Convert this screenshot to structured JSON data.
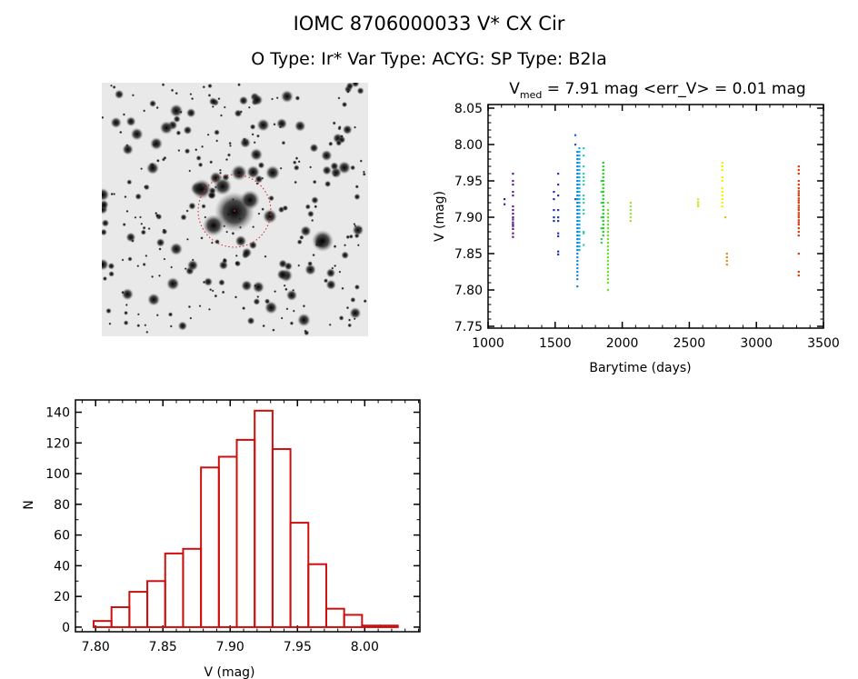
{
  "header": {
    "title": "IOMC 8706000033   V* CX Cir",
    "subtitle": "O Type: Ir*  Var Type: ACYG:  SP Type: B2Ia"
  },
  "image_panel": {
    "description_icon": "star-field-image",
    "marker_color": "#d02020"
  },
  "chart_data": [
    {
      "type": "scatter",
      "title_main": "V",
      "title_sub": "med",
      "title_rest": " = 7.91 mag <err_V> = 0.01 mag",
      "xlabel": "Barytime (days)",
      "ylabel": "V (mag)",
      "xlim": [
        1000,
        3500
      ],
      "ylim": [
        8.055,
        7.7475
      ],
      "y_reversed": true,
      "xticks": [
        1000,
        1500,
        2000,
        2500,
        3000,
        3500
      ],
      "yticks": [
        "7.75",
        "7.80",
        "7.85",
        "7.90",
        "7.95",
        "8.00",
        "8.05"
      ],
      "clusters": [
        {
          "x": 1122,
          "color": "#4b1a78",
          "y": [
            7.918,
            7.925
          ]
        },
        {
          "x": 1185,
          "color": "#5a1a8a",
          "y": [
            7.873,
            7.878,
            7.884,
            7.888,
            7.89,
            7.893,
            7.897,
            7.9,
            7.905,
            7.91,
            7.915,
            7.93,
            7.935,
            7.945,
            7.95,
            7.96
          ]
        },
        {
          "x": 1490,
          "color": "#2030a0",
          "y": [
            7.895,
            7.9,
            7.91,
            7.925,
            7.935
          ]
        },
        {
          "x": 1522,
          "color": "#2236b0",
          "y": [
            7.849,
            7.853,
            7.874,
            7.878,
            7.895,
            7.9,
            7.91,
            7.93,
            7.945,
            7.96
          ]
        },
        {
          "x": 1650,
          "color": "#1a60c0",
          "y": [
            7.925,
            8.0,
            8.013
          ]
        },
        {
          "x": 1665,
          "color": "#1a80d0",
          "y": [
            7.805,
            7.815,
            7.82,
            7.825,
            7.83,
            7.835,
            7.84,
            7.845,
            7.85,
            7.855,
            7.86,
            7.865,
            7.87,
            7.875,
            7.88,
            7.885,
            7.89,
            7.895,
            7.9,
            7.905,
            7.91,
            7.915,
            7.92,
            7.925,
            7.93,
            7.935,
            7.94,
            7.945,
            7.95,
            7.955,
            7.96,
            7.965,
            7.97,
            7.975,
            7.98,
            7.985,
            7.99
          ]
        },
        {
          "x": 1680,
          "color": "#10b0e8",
          "y": [
            7.855,
            7.86,
            7.865,
            7.87,
            7.875,
            7.88,
            7.885,
            7.89,
            7.895,
            7.9,
            7.905,
            7.91,
            7.915,
            7.92,
            7.925,
            7.93,
            7.935,
            7.94,
            7.945,
            7.95,
            7.955,
            7.96,
            7.965,
            7.97,
            7.975,
            7.98,
            7.985,
            7.99,
            7.995
          ]
        },
        {
          "x": 1712,
          "color": "#30d0a0",
          "y": [
            7.862,
            7.878,
            7.88,
            7.905,
            7.91,
            7.92,
            7.925,
            7.93,
            7.945,
            7.95,
            7.955,
            7.96,
            7.97,
            7.985,
            7.995
          ]
        },
        {
          "x": 1845,
          "color": "#30d060",
          "y": [
            7.865,
            7.87,
            7.885,
            7.9,
            7.92,
            7.935,
            7.95
          ]
        },
        {
          "x": 1858,
          "color": "#20d020",
          "y": [
            7.875,
            7.88,
            7.885,
            7.89,
            7.895,
            7.9,
            7.905,
            7.91,
            7.915,
            7.92,
            7.925,
            7.93,
            7.935,
            7.94,
            7.945,
            7.95,
            7.955,
            7.96,
            7.965,
            7.97,
            7.975
          ]
        },
        {
          "x": 1893,
          "color": "#70e030",
          "y": [
            7.8,
            7.81,
            7.815,
            7.82,
            7.825,
            7.83,
            7.835,
            7.84,
            7.845,
            7.85,
            7.855,
            7.86,
            7.865,
            7.87,
            7.875,
            7.88,
            7.885,
            7.89,
            7.895,
            7.9,
            7.905,
            7.91,
            7.92
          ]
        },
        {
          "x": 2062,
          "color": "#a0e040",
          "y": [
            7.895,
            7.9,
            7.905,
            7.91,
            7.915,
            7.92
          ]
        },
        {
          "x": 2565,
          "color": "#d8e030",
          "y": [
            7.915,
            7.918,
            7.921,
            7.925
          ]
        },
        {
          "x": 2745,
          "color": "#f0f000",
          "y": [
            7.915,
            7.92,
            7.925,
            7.93,
            7.935,
            7.94,
            7.95,
            7.955,
            7.965,
            7.97,
            7.975
          ]
        },
        {
          "x": 2768,
          "color": "#e8c020",
          "y": [
            7.9
          ]
        },
        {
          "x": 2780,
          "color": "#e09020",
          "y": [
            7.835,
            7.84,
            7.845,
            7.85
          ]
        },
        {
          "x": 3315,
          "color": "#d04010",
          "y": [
            7.82,
            7.825,
            7.85,
            7.875,
            7.88,
            7.885,
            7.89,
            7.893,
            7.896,
            7.9,
            7.903,
            7.906,
            7.91,
            7.913,
            7.916,
            7.92,
            7.923,
            7.926,
            7.93,
            7.933,
            7.936,
            7.94,
            7.945,
            7.95,
            7.96,
            7.965,
            7.97
          ]
        }
      ]
    },
    {
      "type": "bar",
      "xlabel": "V (mag)",
      "ylabel": "N",
      "xlim": [
        7.785,
        8.041
      ],
      "ylim": [
        -3,
        148
      ],
      "xticks": [
        "7.80",
        "7.85",
        "7.90",
        "7.95",
        "8.00"
      ],
      "yticks": [
        0,
        20,
        40,
        60,
        80,
        100,
        120,
        140
      ],
      "bin_start": 7.7985,
      "bin_width": 0.0133,
      "values": [
        4,
        13,
        23,
        30,
        48,
        51,
        104,
        111,
        122,
        141,
        116,
        68,
        41,
        12,
        8,
        1,
        1
      ],
      "color": "#cc1010"
    }
  ]
}
